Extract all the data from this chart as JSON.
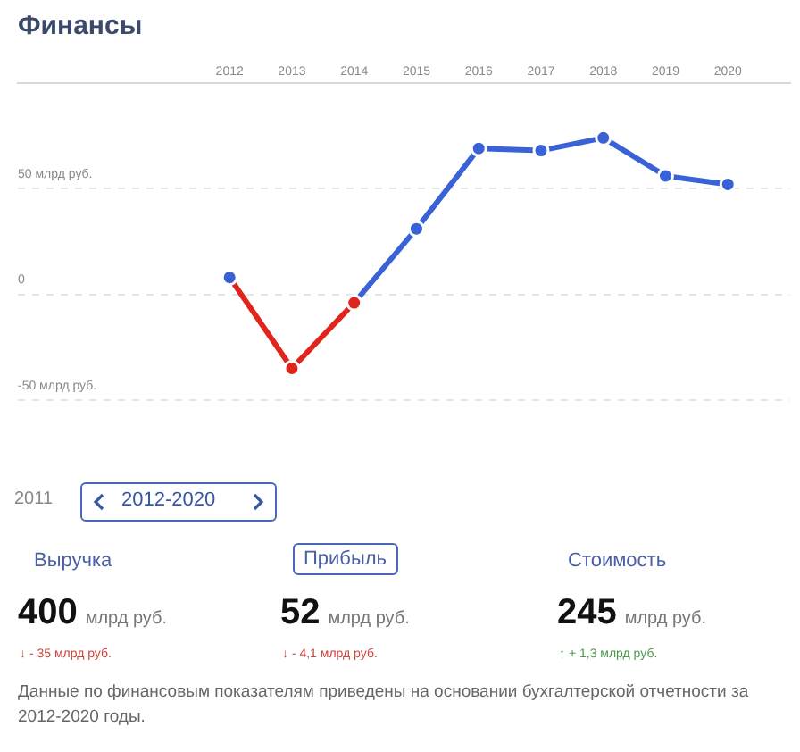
{
  "chart_data": {
    "type": "line",
    "title": "Финансы",
    "x": [
      2012,
      2013,
      2014,
      2015,
      2016,
      2017,
      2018,
      2019,
      2020
    ],
    "xlim": [
      2008.6,
      2021
    ],
    "xticks": [
      2012,
      2013,
      2014,
      2015,
      2016,
      2017,
      2018,
      2019,
      2020
    ],
    "ylim": [
      -50,
      100
    ],
    "yticks": [
      {
        "value": -50,
        "label": "-50 млрд руб."
      },
      0,
      {
        "value": 50,
        "label": "50 млрд руб."
      }
    ],
    "grid": "y",
    "marker": "circle",
    "series": [
      {
        "color": "#e0261c",
        "colors": [
          "#3a62d7",
          "#e0261c",
          "#e0261c",
          null,
          null,
          null,
          null,
          null,
          null
        ],
        "values": [
          8,
          -35,
          -4,
          null,
          null,
          null,
          null,
          null,
          null
        ]
      },
      {
        "color": "#3a62d7",
        "colors": [
          "#3a62d7",
          null,
          "#e0261c",
          "#3a62d7",
          "#3a62d7",
          "#3a62d7",
          "#3a62d7",
          "#3a62d7",
          "#3a62d7"
        ],
        "values": [
          8,
          null,
          -4,
          31,
          69,
          68,
          74,
          56,
          52
        ]
      }
    ],
    "annotations": [
      "2011",
      "2012-2020",
      "Выручка",
      "Прибыль",
      "Стоимость",
      "400 млрд руб.",
      "52 млрд руб.",
      "245 млрд руб.",
      "↓ - 35 млрд руб.",
      "↓ - 4,1 млрд руб.",
      "↑ + 1,3 млрд руб.",
      "Данные по финансовым показателям приведены на основании бухгалтерской отчетности за 2012-2020 годы."
    ]
  }
}
